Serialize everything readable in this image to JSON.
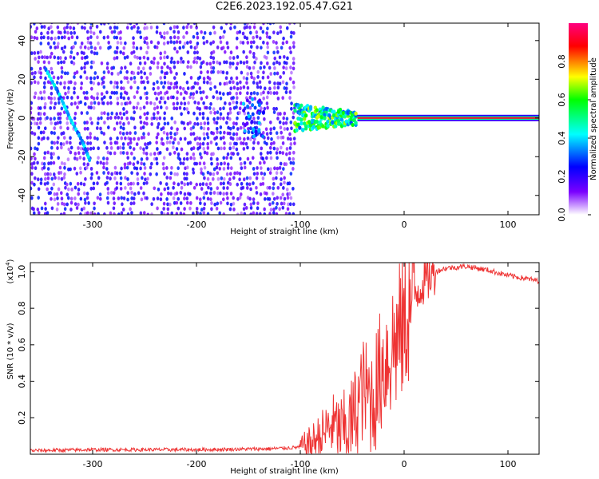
{
  "title": "C2E6.2023.192.05.47.G21",
  "chart_data": [
    {
      "type": "heatmap",
      "xlabel": "Height of straight line (km)",
      "ylabel": "Frequency (Hz)",
      "xlim": [
        -360,
        130
      ],
      "ylim": [
        -50,
        49
      ],
      "xticks": [
        -300,
        -200,
        -100,
        0,
        100
      ],
      "yticks": [
        -40,
        -20,
        0,
        20,
        40
      ],
      "colorbar": {
        "label": "Normalized spectral amplitude",
        "range": [
          0,
          1
        ],
        "ticks": [
          "0.0",
          "0.2",
          "0.4",
          "0.6",
          "0.8"
        ],
        "colormap": [
          "#ffffff",
          "#7a00ff",
          "#0000ff",
          "#00ffff",
          "#00ff00",
          "#ffff00",
          "#ff0000",
          "#ff0080"
        ]
      },
      "features": {
        "noise_region_x": [
          -360,
          -105
        ],
        "signal_line_freq_hz": 0,
        "signal_line_start_x": -45,
        "clustered_tone_x": [
          -105,
          -45
        ],
        "drift_track": [
          [
            -345,
            25
          ],
          [
            -332,
            12
          ],
          [
            -322,
            0
          ],
          [
            -310,
            -12
          ],
          [
            -302,
            -23
          ]
        ]
      }
    },
    {
      "type": "line",
      "xlabel": "Height of straight line (km)",
      "ylabel": "SNR (10 * v/v)",
      "ylabel_scale": "(x10",
      "ylabel_scale_exp": "4",
      "xlim": [
        -360,
        130
      ],
      "ylim": [
        0,
        1.05
      ],
      "xticks": [
        -300,
        -200,
        -100,
        0,
        100
      ],
      "yticks": [
        "0.2",
        "0.4",
        "0.6",
        "0.8",
        "1.0"
      ],
      "color": "#ee3333",
      "series": [
        {
          "name": "",
          "x": [
            -360,
            -300,
            -200,
            -130,
            -110,
            -100,
            -90,
            -80,
            -70,
            -60,
            -50,
            -40,
            -30,
            -20,
            -10,
            0,
            10,
            20,
            30,
            40,
            60,
            80,
            100,
            130
          ],
          "y": [
            0.02,
            0.025,
            0.025,
            0.03,
            0.035,
            0.04,
            0.06,
            0.1,
            0.16,
            0.12,
            0.18,
            0.35,
            0.3,
            0.5,
            0.6,
            0.7,
            0.88,
            0.95,
            1.0,
            1.02,
            1.03,
            1.01,
            0.98,
            0.95
          ]
        }
      ]
    }
  ]
}
